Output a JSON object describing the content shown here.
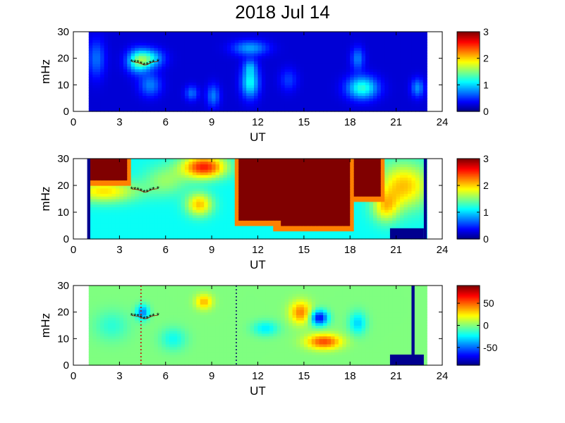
{
  "figure": {
    "title": "2018 Jul 14"
  },
  "chart_data": [
    {
      "type": "heatmap",
      "xlabel": "UT",
      "ylabel": "mHz",
      "xlim": [
        0,
        24
      ],
      "ylim": [
        0,
        30
      ],
      "xticks": [
        "0",
        "3",
        "6",
        "9",
        "12",
        "15",
        "18",
        "21",
        "24"
      ],
      "yticks": [
        "0",
        "10",
        "20",
        "30"
      ],
      "data_extent_x": [
        1,
        23
      ],
      "colorbar": {
        "range": [
          0,
          3
        ],
        "ticks": [
          "0",
          "1",
          "2",
          "3"
        ],
        "colormap": "jet"
      },
      "background_level": 0.25,
      "blobs": [
        {
          "x": 4.2,
          "y": 19,
          "sx": 0.5,
          "sy": 3,
          "v": 1.0
        },
        {
          "x": 5.0,
          "y": 20,
          "sx": 0.6,
          "sy": 2.5,
          "v": 0.8
        },
        {
          "x": 5.0,
          "y": 10,
          "sx": 0.5,
          "sy": 3,
          "v": 0.5
        },
        {
          "x": 1.5,
          "y": 20,
          "sx": 0.4,
          "sy": 5,
          "v": 0.45
        },
        {
          "x": 11.5,
          "y": 11,
          "sx": 0.4,
          "sy": 4,
          "v": 0.9
        },
        {
          "x": 11.5,
          "y": 24,
          "sx": 0.8,
          "sy": 2,
          "v": 0.6
        },
        {
          "x": 11.5,
          "y": 17,
          "sx": 0.3,
          "sy": 2,
          "v": 0.4
        },
        {
          "x": 7.7,
          "y": 7,
          "sx": 0.3,
          "sy": 2,
          "v": 0.45
        },
        {
          "x": 9.1,
          "y": 6,
          "sx": 0.3,
          "sy": 3,
          "v": 0.5
        },
        {
          "x": 14.0,
          "y": 12,
          "sx": 0.4,
          "sy": 3,
          "v": 0.3
        },
        {
          "x": 18.8,
          "y": 9,
          "sx": 0.7,
          "sy": 3,
          "v": 1.0
        },
        {
          "x": 18.5,
          "y": 20,
          "sx": 0.3,
          "sy": 3,
          "v": 0.5
        },
        {
          "x": 22.4,
          "y": 9,
          "sx": 0.3,
          "sy": 2.5,
          "v": 0.55
        }
      ],
      "overlay_track": {
        "color": "#000000",
        "points": [
          [
            3.8,
            18.7
          ],
          [
            4.0,
            18.6
          ],
          [
            4.2,
            18.4
          ],
          [
            4.4,
            18.0
          ],
          [
            4.6,
            17.5
          ],
          [
            4.8,
            17.6
          ],
          [
            5.0,
            18.2
          ],
          [
            5.2,
            18.6
          ],
          [
            5.5,
            18.8
          ]
        ]
      }
    },
    {
      "type": "heatmap",
      "xlabel": "UT",
      "ylabel": "mHz",
      "xlim": [
        0,
        24
      ],
      "ylim": [
        0,
        30
      ],
      "xticks": [
        "0",
        "3",
        "6",
        "9",
        "12",
        "15",
        "18",
        "21",
        "24"
      ],
      "yticks": [
        "0",
        "10",
        "20",
        "30"
      ],
      "data_extent_x": [
        1,
        23
      ],
      "colorbar": {
        "range": [
          0,
          3
        ],
        "ticks": [
          "0",
          "1",
          "2",
          "3"
        ],
        "colormap": "jet"
      },
      "background_level": 1.15,
      "saturated_regions": [
        {
          "x_range": [
            10.8,
            13.4
          ],
          "floor_mHz": 7
        },
        {
          "x_range": [
            13.4,
            18.0
          ],
          "floor_mHz": 5
        },
        {
          "x_range": [
            18.2,
            20.0
          ],
          "floor_mHz": 16
        },
        {
          "x_range": [
            1.0,
            3.5
          ],
          "floor_mHz": 22
        }
      ],
      "blobs": [
        {
          "x": 8.2,
          "y": 13,
          "sx": 0.6,
          "sy": 3,
          "v": 0.9
        },
        {
          "x": 8.5,
          "y": 27,
          "sx": 1.0,
          "sy": 3,
          "v": 1.4
        },
        {
          "x": 2.0,
          "y": 18,
          "sx": 1.5,
          "sy": 3,
          "v": 0.8
        },
        {
          "x": 21.5,
          "y": 20,
          "sx": 1.2,
          "sy": 6,
          "v": 0.9
        },
        {
          "x": 6.0,
          "y": 22,
          "sx": 1.0,
          "sy": 4,
          "v": 0.4
        },
        {
          "x": 20.3,
          "y": 12,
          "sx": 0.6,
          "sy": 4,
          "v": 0.7
        }
      ],
      "dark_blocks": [
        {
          "x_range": [
            20.6,
            22.8
          ],
          "y_range": [
            0,
            4
          ]
        },
        {
          "x_range": [
            0.9,
            1.1
          ],
          "y_range": [
            0,
            30
          ]
        },
        {
          "x_range": [
            22.8,
            23.0
          ],
          "y_range": [
            0,
            30
          ]
        }
      ],
      "overlay_track": {
        "color": "#000000",
        "points": [
          [
            3.8,
            18.7
          ],
          [
            4.0,
            18.6
          ],
          [
            4.2,
            18.4
          ],
          [
            4.4,
            18.0
          ],
          [
            4.6,
            17.5
          ],
          [
            4.8,
            17.6
          ],
          [
            5.0,
            18.2
          ],
          [
            5.2,
            18.6
          ],
          [
            5.5,
            18.8
          ]
        ]
      }
    },
    {
      "type": "heatmap",
      "xlabel": "UT",
      "ylabel": "mHz",
      "xlim": [
        0,
        24
      ],
      "ylim": [
        0,
        30
      ],
      "xticks": [
        "0",
        "3",
        "6",
        "9",
        "12",
        "15",
        "18",
        "21",
        "24"
      ],
      "yticks": [
        "0",
        "10",
        "20",
        "30"
      ],
      "data_extent_x": [
        1,
        23
      ],
      "colorbar": {
        "range": [
          -90,
          90
        ],
        "ticks": [
          "50",
          "0",
          "-50"
        ],
        "colormap": "jet"
      },
      "background_level": 0,
      "blobs": [
        {
          "x": 14.8,
          "y": 20,
          "sx": 0.5,
          "sy": 3,
          "v": 45
        },
        {
          "x": 16.3,
          "y": 9,
          "sx": 0.8,
          "sy": 2,
          "v": 55
        },
        {
          "x": 16.0,
          "y": 18,
          "sx": 0.4,
          "sy": 2,
          "v": -70
        },
        {
          "x": 4.5,
          "y": 20,
          "sx": 0.3,
          "sy": 2,
          "v": -45
        },
        {
          "x": 18.5,
          "y": 16,
          "sx": 0.4,
          "sy": 3,
          "v": -30
        },
        {
          "x": 8.5,
          "y": 24,
          "sx": 0.4,
          "sy": 2,
          "v": 35
        },
        {
          "x": 12.5,
          "y": 14,
          "sx": 0.6,
          "sy": 2,
          "v": -25
        },
        {
          "x": 6.5,
          "y": 10,
          "sx": 0.6,
          "sy": 3,
          "v": -20
        },
        {
          "x": 2.5,
          "y": 15,
          "sx": 0.8,
          "sy": 4,
          "v": -15
        }
      ],
      "dark_blocks": [
        {
          "x_range": [
            20.6,
            22.8
          ],
          "y_range": [
            0,
            4
          ]
        },
        {
          "x_range": [
            22.0,
            22.2
          ],
          "y_range": [
            0,
            30
          ]
        }
      ],
      "vertical_markers": [
        {
          "x": 4.4,
          "color": "#cc0000"
        },
        {
          "x": 10.6,
          "color": "#000066"
        }
      ],
      "overlay_track": {
        "color": "#000000",
        "points": [
          [
            3.8,
            18.7
          ],
          [
            4.0,
            18.6
          ],
          [
            4.2,
            18.4
          ],
          [
            4.4,
            18.0
          ],
          [
            4.6,
            17.5
          ],
          [
            4.8,
            17.6
          ],
          [
            5.0,
            18.2
          ],
          [
            5.2,
            18.6
          ],
          [
            5.5,
            18.8
          ]
        ]
      }
    }
  ]
}
